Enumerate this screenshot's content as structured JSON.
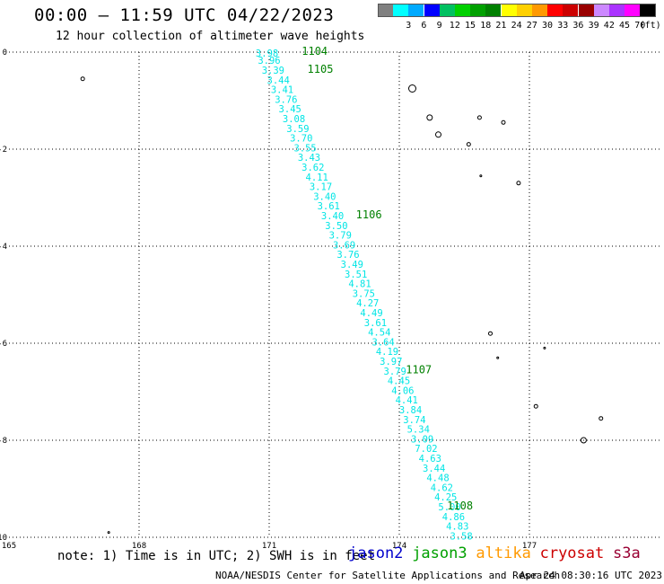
{
  "header": {
    "title": "00:00 – 11:59 UTC 04/22/2023",
    "subtitle": "12 hour collection of altimeter wave heights"
  },
  "colorbar": {
    "unit": "(ft)",
    "swatches": [
      {
        "color": "#808080",
        "label": ""
      },
      {
        "color": "#00ffff",
        "label": "3"
      },
      {
        "color": "#00aaff",
        "label": "6"
      },
      {
        "color": "#0000ff",
        "label": "9"
      },
      {
        "color": "#00c060",
        "label": "12"
      },
      {
        "color": "#00d000",
        "label": "15"
      },
      {
        "color": "#00a000",
        "label": "18"
      },
      {
        "color": "#008000",
        "label": "21"
      },
      {
        "color": "#ffff00",
        "label": "24"
      },
      {
        "color": "#ffd000",
        "label": "27"
      },
      {
        "color": "#ff9900",
        "label": "30"
      },
      {
        "color": "#ff0000",
        "label": "33"
      },
      {
        "color": "#cc0000",
        "label": "36"
      },
      {
        "color": "#990000",
        "label": "39"
      },
      {
        "color": "#cc88ff",
        "label": "42"
      },
      {
        "color": "#aa33ff",
        "label": "45"
      },
      {
        "color": "#ff00ff",
        "label": "70"
      },
      {
        "color": "#000000",
        "label": ""
      }
    ]
  },
  "map": {
    "lon_min": 165,
    "lon_max": 180,
    "lat_min": -10,
    "lat_max": 0,
    "xticks": [
      {
        "value": 165,
        "label": "165"
      },
      {
        "value": 168,
        "label": "168"
      },
      {
        "value": 171,
        "label": "171"
      },
      {
        "value": 174,
        "label": "174"
      },
      {
        "value": 177,
        "label": "177"
      }
    ],
    "yticks": [
      {
        "value": 0,
        "label": "0"
      },
      {
        "value": -2,
        "label": "-2"
      },
      {
        "value": -4,
        "label": "-4"
      },
      {
        "value": -6,
        "label": "-6"
      },
      {
        "value": -8,
        "label": "-8"
      },
      {
        "value": -10,
        "label": "-10"
      }
    ],
    "track_color": "#00e5e5",
    "time_color": "#008000",
    "track": [
      {
        "lon": 170.95,
        "lat": -0.02,
        "swh": "3.98"
      },
      {
        "lon": 171.0,
        "lat": -0.17,
        "swh": "3.96"
      },
      {
        "lon": 171.09,
        "lat": -0.37,
        "swh": "3.39"
      },
      {
        "lon": 171.21,
        "lat": -0.57,
        "swh": "3.44"
      },
      {
        "lon": 171.3,
        "lat": -0.77,
        "swh": "3.41"
      },
      {
        "lon": 171.39,
        "lat": -0.97,
        "swh": "3.76"
      },
      {
        "lon": 171.48,
        "lat": -1.17,
        "swh": "3.45"
      },
      {
        "lon": 171.57,
        "lat": -1.37,
        "swh": "3.08"
      },
      {
        "lon": 171.66,
        "lat": -1.57,
        "swh": "3.59"
      },
      {
        "lon": 171.74,
        "lat": -1.77,
        "swh": "3.70"
      },
      {
        "lon": 171.83,
        "lat": -1.97,
        "swh": "3.55"
      },
      {
        "lon": 171.92,
        "lat": -2.17,
        "swh": "3.43"
      },
      {
        "lon": 172.01,
        "lat": -2.37,
        "swh": "3.62"
      },
      {
        "lon": 172.1,
        "lat": -2.57,
        "swh": "4.11"
      },
      {
        "lon": 172.19,
        "lat": -2.77,
        "swh": "3.17"
      },
      {
        "lon": 172.28,
        "lat": -2.97,
        "swh": "3.40"
      },
      {
        "lon": 172.37,
        "lat": -3.17,
        "swh": "3.61"
      },
      {
        "lon": 172.46,
        "lat": -3.37,
        "swh": "3.40"
      },
      {
        "lon": 172.55,
        "lat": -3.57,
        "swh": "3.50"
      },
      {
        "lon": 172.64,
        "lat": -3.77,
        "swh": "3.79"
      },
      {
        "lon": 172.73,
        "lat": -3.97,
        "swh": "3.69"
      },
      {
        "lon": 172.82,
        "lat": -4.17,
        "swh": "3.76"
      },
      {
        "lon": 172.91,
        "lat": -4.37,
        "swh": "3.49"
      },
      {
        "lon": 173.0,
        "lat": -4.57,
        "swh": "3.51"
      },
      {
        "lon": 173.09,
        "lat": -4.77,
        "swh": "4.81"
      },
      {
        "lon": 173.18,
        "lat": -4.97,
        "swh": "3.75"
      },
      {
        "lon": 173.27,
        "lat": -5.17,
        "swh": "4.27"
      },
      {
        "lon": 173.36,
        "lat": -5.37,
        "swh": "4.49"
      },
      {
        "lon": 173.45,
        "lat": -5.57,
        "swh": "3.61"
      },
      {
        "lon": 173.54,
        "lat": -5.77,
        "swh": "4.54"
      },
      {
        "lon": 173.63,
        "lat": -5.97,
        "swh": "3.64"
      },
      {
        "lon": 173.72,
        "lat": -6.17,
        "swh": "4.19"
      },
      {
        "lon": 173.81,
        "lat": -6.37,
        "swh": "3.97"
      },
      {
        "lon": 173.9,
        "lat": -6.57,
        "swh": "3.79"
      },
      {
        "lon": 173.99,
        "lat": -6.77,
        "swh": "4.45"
      },
      {
        "lon": 174.08,
        "lat": -6.97,
        "swh": "4.06"
      },
      {
        "lon": 174.17,
        "lat": -7.17,
        "swh": "4.41"
      },
      {
        "lon": 174.26,
        "lat": -7.37,
        "swh": "3.84"
      },
      {
        "lon": 174.35,
        "lat": -7.57,
        "swh": "3.74"
      },
      {
        "lon": 174.44,
        "lat": -7.77,
        "swh": "5.34"
      },
      {
        "lon": 174.53,
        "lat": -7.97,
        "swh": "3.09"
      },
      {
        "lon": 174.62,
        "lat": -8.17,
        "swh": "7.02"
      },
      {
        "lon": 174.71,
        "lat": -8.37,
        "swh": "4.63"
      },
      {
        "lon": 174.8,
        "lat": -8.57,
        "swh": "3.44"
      },
      {
        "lon": 174.89,
        "lat": -8.77,
        "swh": "4.48"
      },
      {
        "lon": 174.98,
        "lat": -8.97,
        "swh": "4.62"
      },
      {
        "lon": 175.07,
        "lat": -9.17,
        "swh": "4.25"
      },
      {
        "lon": 175.16,
        "lat": -9.37,
        "swh": "5.00"
      },
      {
        "lon": 175.25,
        "lat": -9.57,
        "swh": "4.86"
      },
      {
        "lon": 175.34,
        "lat": -9.77,
        "swh": "4.83"
      },
      {
        "lon": 175.43,
        "lat": -9.97,
        "swh": "3.58"
      }
    ],
    "time_labels": [
      {
        "text": "1104",
        "lon": 171.75,
        "lat": 0.02
      },
      {
        "text": "1105",
        "lon": 171.88,
        "lat": -0.35
      },
      {
        "text": "1106",
        "lon": 173.0,
        "lat": -3.35
      },
      {
        "text": "1107",
        "lon": 174.15,
        "lat": -6.55
      },
      {
        "text": "1108",
        "lon": 175.1,
        "lat": -9.35
      }
    ],
    "islands": [
      {
        "lon": 166.7,
        "lat": -0.55,
        "r": 2
      },
      {
        "lon": 174.3,
        "lat": -0.75,
        "r": 4
      },
      {
        "lon": 174.7,
        "lat": -1.35,
        "r": 3
      },
      {
        "lon": 174.9,
        "lat": -1.7,
        "r": 3
      },
      {
        "lon": 175.85,
        "lat": -1.35,
        "r": 2
      },
      {
        "lon": 176.4,
        "lat": -1.45,
        "r": 2
      },
      {
        "lon": 175.6,
        "lat": -1.9,
        "r": 2
      },
      {
        "lon": 175.88,
        "lat": -2.55,
        "r": 1
      },
      {
        "lon": 176.75,
        "lat": -2.7,
        "r": 2
      },
      {
        "lon": 176.1,
        "lat": -5.8,
        "r": 2
      },
      {
        "lon": 176.27,
        "lat": -6.3,
        "r": 1
      },
      {
        "lon": 177.35,
        "lat": -6.1,
        "r": 1
      },
      {
        "lon": 177.15,
        "lat": -7.3,
        "r": 2
      },
      {
        "lon": 178.65,
        "lat": -7.55,
        "r": 2
      },
      {
        "lon": 178.25,
        "lat": -8.0,
        "r": 3
      },
      {
        "lon": 167.3,
        "lat": -9.9,
        "r": 1
      }
    ]
  },
  "footnote": {
    "note": "note: 1) Time is in UTC; 2) SWH is in feet",
    "credit": "NOAA/NESDIS Center for Satellite Applications and Research",
    "generated": "Apr 24 08:30:16 UTC 2023"
  },
  "satellites": [
    {
      "name": "jason2",
      "color": "#0000cc"
    },
    {
      "name": "jason3",
      "color": "#00a000"
    },
    {
      "name": "altika",
      "color": "#ff9900"
    },
    {
      "name": "cryosat",
      "color": "#cc0000"
    },
    {
      "name": "s3a",
      "color": "#990033"
    }
  ]
}
